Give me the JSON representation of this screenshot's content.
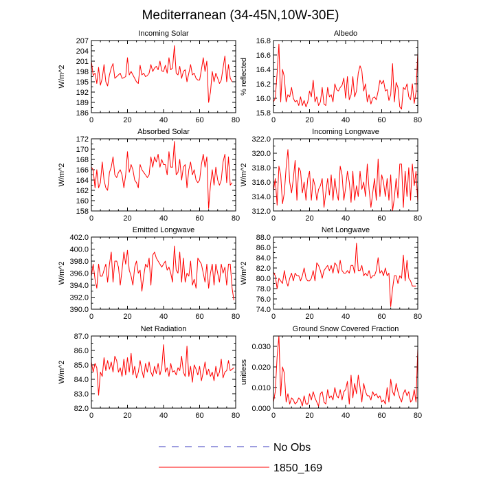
{
  "figure_title": "Mediterranean (34-45N,10W-30E)",
  "legend": [
    {
      "label": "No Obs",
      "color": "#3b3bbf",
      "style": "dashed"
    },
    {
      "label": "1850_169",
      "color": "#ff0000",
      "style": "solid"
    }
  ],
  "chart_data": [
    {
      "type": "line",
      "title": "Incoming Solar",
      "ylabel": "W/m^2",
      "xlabel": "",
      "xlim": [
        0,
        80
      ],
      "xticks": [
        "0",
        "20",
        "40",
        "60",
        "80"
      ],
      "ylim": [
        186,
        207
      ],
      "yticks": [
        "186",
        "189",
        "192",
        "195",
        "198",
        "201",
        "204",
        "207"
      ],
      "series": [
        {
          "name": "1850_169",
          "color": "#ff0000",
          "x_start": 0,
          "values": [
            201,
            196.8,
            197.5,
            194.5,
            199.2,
            194,
            196,
            200,
            195,
            193.8,
            197,
            199,
            200.3,
            196,
            196.5,
            197,
            197.5,
            196,
            196.2,
            196.5,
            202,
            197,
            198,
            197,
            196,
            195,
            194.5,
            199.8,
            197,
            197.5,
            196.5,
            196.8,
            197.5,
            200,
            198,
            199,
            199.5,
            198.5,
            201,
            198.2,
            198,
            199.8,
            197.5,
            202,
            198.5,
            199,
            205.5,
            197.5,
            197,
            199.5,
            196,
            198,
            198.5,
            195,
            197.5,
            200,
            197,
            197.5,
            196,
            195.5,
            195.5,
            198.5,
            202,
            198,
            201,
            189,
            192,
            198,
            195,
            197.5,
            196,
            194.5,
            195.5,
            199,
            202.5,
            195,
            200,
            196,
            195
          ]
        }
      ]
    },
    {
      "type": "line",
      "title": "Albedo",
      "ylabel": "% reflected",
      "xlabel": "",
      "xlim": [
        0,
        80
      ],
      "xticks": [
        "0",
        "20",
        "40",
        "60",
        "80"
      ],
      "ylim": [
        15.8,
        16.8
      ],
      "yticks": [
        "15.8",
        "16.0",
        "16.2",
        "16.4",
        "16.6",
        "16.8"
      ],
      "series": [
        {
          "name": "1850_169",
          "color": "#ff0000",
          "x_start": 0,
          "values": [
            15.95,
            16.0,
            16.35,
            16.75,
            15.95,
            16.4,
            16.3,
            15.95,
            16.05,
            16.02,
            16.15,
            16.0,
            15.95,
            15.97,
            15.9,
            16.02,
            15.9,
            15.97,
            15.88,
            15.95,
            16.1,
            16.02,
            16.25,
            15.95,
            16.02,
            15.9,
            15.95,
            16.15,
            15.92,
            15.9,
            16.15,
            16.02,
            16.05,
            15.95,
            16.2,
            16.12,
            16.1,
            16.15,
            16.18,
            16.28,
            16.0,
            16.3,
            15.98,
            16.05,
            16.3,
            16.02,
            16.1,
            16.35,
            16.45,
            16.38,
            16.1,
            16.2,
            15.95,
            16.05,
            15.92,
            16.0,
            16.02,
            15.98,
            16.1,
            16.25,
            16.2,
            16.25,
            16.1,
            16.12,
            15.97,
            16.05,
            16.48,
            15.95,
            16.22,
            16.15,
            15.88,
            15.85,
            16.15,
            16.12,
            16.2,
            16.02,
            15.98,
            16.2,
            15.93,
            16.08,
            16.63
          ]
        }
      ]
    },
    {
      "type": "line",
      "title": "Absorbed Solar",
      "ylabel": "W/m^2",
      "xlabel": "",
      "xlim": [
        0,
        80
      ],
      "xticks": [
        "0",
        "20",
        "40",
        "60",
        "80"
      ],
      "ylim": [
        158,
        172
      ],
      "yticks": [
        "158",
        "160",
        "162",
        "164",
        "166",
        "168",
        "170",
        "172"
      ],
      "series": [
        {
          "name": "1850_169",
          "color": "#ff0000",
          "x_start": 0,
          "values": [
            166.5,
            166,
            162.5,
            166,
            162.5,
            163.5,
            167.5,
            164,
            162.5,
            162,
            165.5,
            166.5,
            168.5,
            165,
            164.5,
            165.5,
            166,
            165,
            162.5,
            165,
            169.5,
            165.5,
            167,
            166,
            164,
            163.5,
            162.5,
            167,
            166,
            165.5,
            165,
            164.5,
            165,
            168.5,
            166.5,
            168.5,
            167.5,
            169,
            166.5,
            168,
            167,
            167,
            165,
            169.5,
            166.5,
            166.5,
            171.5,
            165,
            165.5,
            168,
            164,
            166.5,
            167,
            162.5,
            166,
            167.5,
            165,
            166,
            164,
            163.5,
            164,
            167,
            169,
            166.5,
            168.5,
            158.5,
            163,
            166,
            163,
            166.5,
            164,
            163,
            164,
            167.5,
            169,
            163.5,
            168.5,
            163,
            163.5
          ]
        }
      ]
    },
    {
      "type": "line",
      "title": "Incoming Longwave",
      "ylabel": "W/m^2",
      "xlabel": "",
      "xlim": [
        0,
        80
      ],
      "xticks": [
        "0",
        "20",
        "40",
        "60",
        "80"
      ],
      "ylim": [
        312.0,
        322.0
      ],
      "yticks": [
        "312.0",
        "314.0",
        "316.0",
        "318.0",
        "320.0",
        "322.0"
      ],
      "series": [
        {
          "name": "1850_169",
          "color": "#ff0000",
          "x_start": 0,
          "values": [
            314.8,
            316.5,
            312.8,
            318.2,
            317,
            313,
            314.5,
            318,
            320.5,
            316,
            314.5,
            316.5,
            319,
            313.5,
            318,
            317.5,
            314.5,
            316,
            313.5,
            316.5,
            317.5,
            313.5,
            316.5,
            315.5,
            313.5,
            315,
            315.5,
            316.5,
            312.5,
            314.5,
            316.5,
            314.2,
            317,
            313.5,
            316.5,
            314.5,
            313.5,
            318.2,
            317,
            313.5,
            315.2,
            317.5,
            316,
            313.2,
            317.5,
            313.5,
            315.5,
            314,
            317.5,
            315,
            316,
            314,
            318.5,
            315,
            312.5,
            314.5,
            316.5,
            313.5,
            319.2,
            314,
            317,
            316,
            314,
            316.5,
            313.5,
            317,
            312,
            313.8,
            316.5,
            313.8,
            318.5,
            318.5,
            312.5,
            317.5,
            314,
            318,
            313.5,
            318.5,
            315.5,
            317.5,
            313.2
          ]
        }
      ]
    },
    {
      "type": "line",
      "title": "Emitted Longwave",
      "ylabel": "W/m^2",
      "xlabel": "",
      "xlim": [
        0,
        80
      ],
      "xticks": [
        "0",
        "20",
        "40",
        "60",
        "80"
      ],
      "ylim": [
        390.0,
        402.0
      ],
      "yticks": [
        "390.0",
        "392.0",
        "394.0",
        "396.0",
        "398.0",
        "400.0",
        "402.0"
      ],
      "series": [
        {
          "name": "1850_169",
          "color": "#ff0000",
          "x_start": 0,
          "values": [
            395.5,
            397.5,
            395,
            393.5,
            397.5,
            395.5,
            395.5,
            396.5,
            397.5,
            394.5,
            397.5,
            399.5,
            394.5,
            398,
            398,
            397,
            394,
            396.5,
            399.5,
            397.5,
            399.8,
            396.5,
            395.5,
            394,
            397,
            398,
            396,
            396.5,
            393,
            395.5,
            397.5,
            397,
            398.5,
            394,
            399,
            399.5,
            398.5,
            398,
            397.5,
            397,
            397.5,
            398,
            396.5,
            397,
            396,
            394.5,
            400.5,
            396.5,
            396,
            399.5,
            394.5,
            398.5,
            394.5,
            396,
            395.5,
            398,
            394,
            395,
            393.5,
            398.5,
            398,
            397.5,
            396,
            394.5,
            397.5,
            393.5,
            396,
            397.5,
            394,
            397.5,
            396,
            394.5,
            397.5,
            396,
            397,
            394,
            397.5,
            397.5,
            393.5,
            391.5
          ]
        }
      ]
    },
    {
      "type": "line",
      "title": "Net Longwave",
      "ylabel": "W/m^2",
      "xlabel": "",
      "xlim": [
        0,
        80
      ],
      "xticks": [
        "0",
        "20",
        "40",
        "60",
        "80"
      ],
      "ylim": [
        74.0,
        88.0
      ],
      "yticks": [
        "74.0",
        "76.0",
        "78.0",
        "80.0",
        "82.0",
        "84.0",
        "86.0",
        "88.0"
      ],
      "series": [
        {
          "name": "1850_169",
          "color": "#ff0000",
          "x_start": 0,
          "values": [
            81.2,
            80.5,
            78,
            80,
            79.5,
            79,
            81.5,
            79.5,
            78.5,
            80,
            81,
            79.5,
            81,
            80.5,
            80.5,
            79.5,
            80.5,
            82,
            80,
            79.5,
            79.5,
            80,
            81.5,
            79.5,
            83,
            82.5,
            81.5,
            80,
            81.5,
            82,
            82.5,
            81.5,
            82.5,
            81,
            83,
            82.5,
            81,
            83.5,
            81.5,
            81,
            81,
            81.5,
            81,
            82.5,
            82.5,
            81,
            86.8,
            81.5,
            81.5,
            82.5,
            80.5,
            81,
            80.5,
            81.5,
            80,
            80.5,
            80.5,
            81.5,
            84,
            81,
            81.5,
            80.5,
            82,
            80.5,
            81,
            74.5,
            78,
            80.5,
            80.5,
            79,
            80.5,
            80,
            84.5,
            79.5,
            83.5,
            80,
            79.5,
            78.5,
            78.5,
            78.5
          ]
        }
      ]
    },
    {
      "type": "line",
      "title": "Net Radiation",
      "ylabel": "W/m^2",
      "xlabel": "",
      "xlim": [
        0,
        80
      ],
      "xticks": [
        "0",
        "20",
        "40",
        "60",
        "80"
      ],
      "ylim": [
        82.0,
        87.0
      ],
      "yticks": [
        "82.0",
        "83.0",
        "84.0",
        "85.0",
        "86.0",
        "87.0"
      ],
      "series": [
        {
          "name": "1850_169",
          "color": "#ff0000",
          "x_start": 0,
          "values": [
            85.2,
            84.5,
            85.1,
            84.8,
            82.9,
            84.5,
            84.2,
            85.5,
            84.6,
            85.3,
            84.7,
            85.2,
            84.5,
            85.6,
            85.3,
            84.5,
            84.8,
            84.2,
            85.4,
            84.3,
            85.5,
            84.5,
            85.8,
            84.3,
            84.9,
            84.1,
            84.5,
            85.3,
            84.6,
            84.1,
            85.1,
            84.5,
            85.2,
            84.5,
            84.2,
            84.9,
            84.4,
            85.1,
            84.3,
            84.8,
            86.4,
            84.5,
            84.8,
            84.2,
            85.1,
            84.5,
            84.6,
            84.3,
            84.8,
            84.6,
            85.6,
            84.5,
            84.2,
            86.3,
            84.2,
            84.9,
            83.8,
            85,
            84.7,
            84.3,
            84.9,
            83.9,
            84.5,
            85.2,
            84.3,
            84.7,
            84.2,
            84.5,
            83.9,
            84.9,
            84.2,
            84.5,
            85.4,
            84.1,
            84.5,
            84.6,
            85.3,
            84.6,
            84.7,
            84.8
          ]
        }
      ]
    },
    {
      "type": "line",
      "title": "Ground Snow Covered Fraction",
      "ylabel": "unitless",
      "xlabel": "",
      "xlim": [
        0,
        80
      ],
      "xticks": [
        "0",
        "20",
        "40",
        "60",
        "80"
      ],
      "ylim": [
        0.0,
        0.035
      ],
      "yticks": [
        "0.000",
        "0.010",
        "0.020",
        "0.030"
      ],
      "series": [
        {
          "name": "1850_169",
          "color": "#ff0000",
          "x_start": 0,
          "values": [
            0.003,
            0.008,
            0.025,
            0.035,
            0.006,
            0.02,
            0.017,
            0.003,
            0.007,
            0.002,
            0.005,
            0.004,
            0.002,
            0.003,
            0.005,
            0.004,
            0.001,
            0.006,
            0.002,
            0.002,
            0.007,
            0.004,
            0.008,
            0.005,
            0.003,
            0.001,
            0.007,
            0.008,
            0.003,
            0.002,
            0.009,
            0.005,
            0.006,
            0.004,
            0.01,
            0.006,
            0.005,
            0.009,
            0.004,
            0.008,
            0.009,
            0.013,
            0.002,
            0.016,
            0.005,
            0.012,
            0.007,
            0.016,
            0.01,
            0.003,
            0.012,
            0.008,
            0.006,
            0.006,
            0.004,
            0.008,
            0.006,
            0.007,
            0.005,
            0.006,
            0.003,
            0.004,
            0.002,
            0.01,
            0.003,
            0.014,
            0.008,
            0.006,
            0.012,
            0.008,
            0.005,
            0.003,
            0.007,
            0.009,
            0.006,
            0.008,
            0.003,
            0.004,
            0.009,
            0.003,
            0.029
          ]
        }
      ]
    }
  ]
}
